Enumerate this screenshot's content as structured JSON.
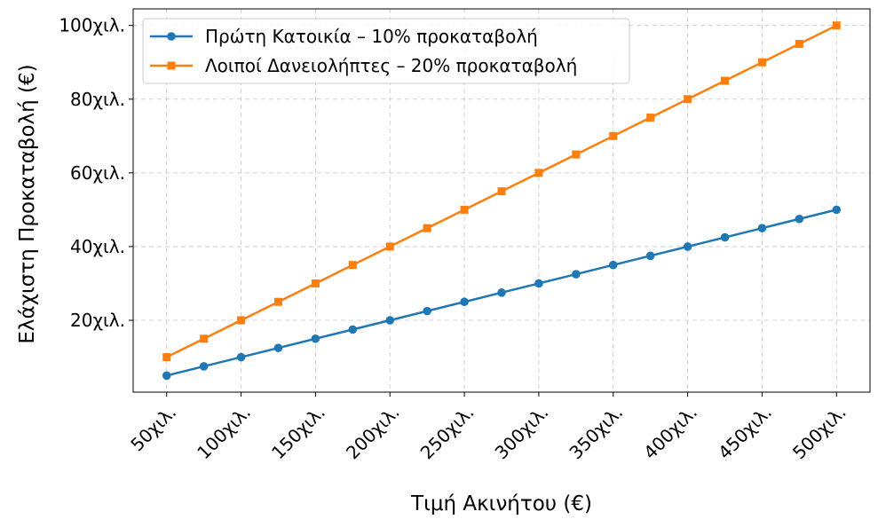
{
  "chart_data": {
    "type": "line",
    "xlabel": "Τιμή Ακινήτου (€)",
    "ylabel": "Ελάχιστη Προκαταβολή (€)",
    "x": [
      50000,
      75000,
      100000,
      125000,
      150000,
      175000,
      200000,
      225000,
      250000,
      275000,
      300000,
      325000,
      350000,
      375000,
      400000,
      425000,
      450000,
      475000,
      500000
    ],
    "xticks": [
      50000,
      100000,
      150000,
      200000,
      250000,
      300000,
      350000,
      400000,
      450000,
      500000
    ],
    "xtick_labels": [
      "50χιλ.",
      "100χιλ.",
      "150χιλ.",
      "200χιλ.",
      "250χιλ.",
      "300χιλ.",
      "350χιλ.",
      "400χιλ.",
      "450χιλ.",
      "500χιλ."
    ],
    "yticks": [
      20000,
      40000,
      60000,
      80000,
      100000
    ],
    "ytick_labels": [
      "20χιλ.",
      "40χιλ.",
      "60χιλ.",
      "80χιλ.",
      "100χιλ."
    ],
    "xlim": [
      27500,
      522500
    ],
    "ylim": [
      500,
      104500
    ],
    "grid": true,
    "legend_position": "top-left",
    "series": [
      {
        "name": "Πρώτη Κατοικία – 10% προκαταβολή",
        "color": "#1f77b4",
        "marker": "circle",
        "values": [
          5000,
          7500,
          10000,
          12500,
          15000,
          17500,
          20000,
          22500,
          25000,
          27500,
          30000,
          32500,
          35000,
          37500,
          40000,
          42500,
          45000,
          47500,
          50000
        ]
      },
      {
        "name": "Λοιποί Δανειολήπτες – 20% προκαταβολή",
        "color": "#ff7f0e",
        "marker": "square",
        "values": [
          10000,
          15000,
          20000,
          25000,
          30000,
          35000,
          40000,
          45000,
          50000,
          55000,
          60000,
          65000,
          70000,
          75000,
          80000,
          85000,
          90000,
          95000,
          100000
        ]
      }
    ]
  }
}
